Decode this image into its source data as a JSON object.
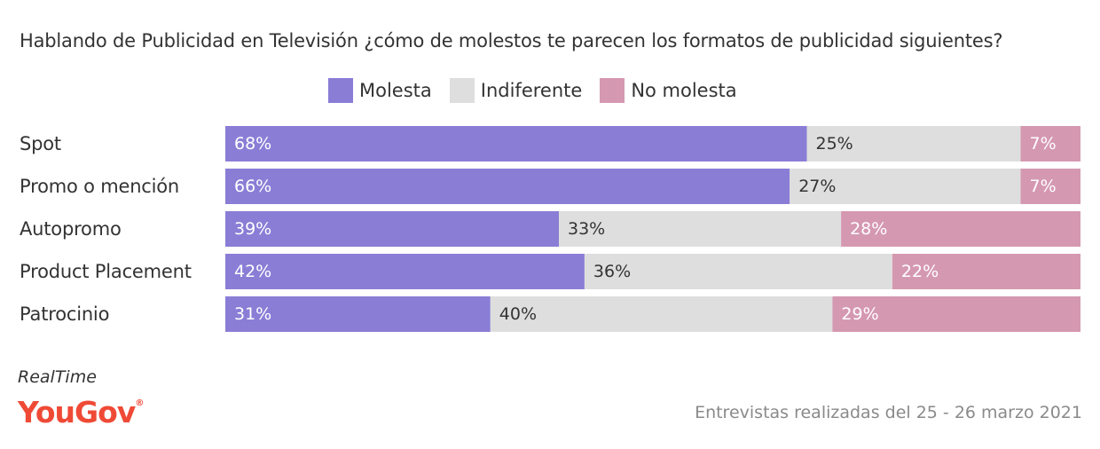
{
  "chart_data": {
    "type": "bar",
    "orientation": "horizontal",
    "stacked": true,
    "normalized_percent": true,
    "title": "Hablando de Publicidad en Televisión ¿cómo de molestos te parecen los formatos de publicidad siguientes?",
    "categories": [
      "Spot",
      "Promo o mención",
      "Autopromo",
      "Product Placement",
      "Patrocinio"
    ],
    "series": [
      {
        "name": "Molesta",
        "color": "#8a7dd6",
        "label_color": "#ffffff",
        "values": [
          68,
          66,
          39,
          42,
          31
        ]
      },
      {
        "name": "Indiferente",
        "color": "#dedede",
        "label_color": "#333333",
        "values": [
          25,
          27,
          33,
          36,
          40
        ]
      },
      {
        "name": "No molesta",
        "color": "#d598b1",
        "label_color": "#ffffff",
        "values": [
          7,
          7,
          28,
          22,
          29
        ]
      }
    ],
    "value_suffix": "%",
    "legend_position": "top",
    "grid": false
  },
  "source": {
    "brand": "RealTime",
    "logo_text": "YouGov",
    "logo_mark": "®",
    "logo_color": "#ef4a36",
    "note": "Entrevistas realizadas del 25 - 26 marzo 2021"
  }
}
